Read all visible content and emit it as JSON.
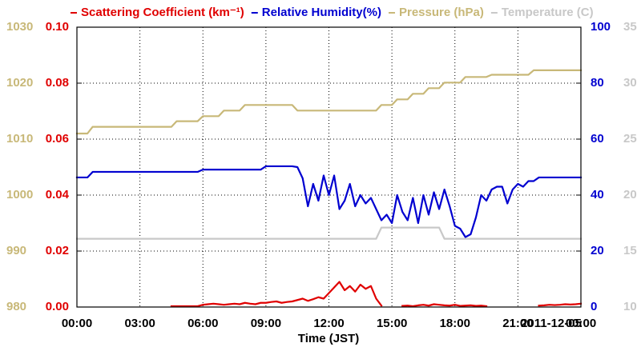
{
  "chart_data": {
    "type": "line",
    "xlabel": "Time (JST)",
    "annotation": "2011-12-05",
    "grid": true,
    "x": [
      0,
      0.25,
      0.5,
      0.75,
      1,
      1.25,
      1.5,
      1.75,
      2,
      2.25,
      2.5,
      2.75,
      3,
      3.25,
      3.5,
      3.75,
      4,
      4.25,
      4.5,
      4.75,
      5,
      5.25,
      5.5,
      5.75,
      6,
      6.25,
      6.5,
      6.75,
      7,
      7.25,
      7.5,
      7.75,
      8,
      8.25,
      8.5,
      8.75,
      9,
      9.25,
      9.5,
      9.75,
      10,
      10.25,
      10.5,
      10.75,
      11,
      11.25,
      11.5,
      11.75,
      12,
      12.25,
      12.5,
      12.75,
      13,
      13.25,
      13.5,
      13.75,
      14,
      14.25,
      14.5,
      14.75,
      15,
      15.25,
      15.5,
      15.75,
      16,
      16.25,
      16.5,
      16.75,
      17,
      17.25,
      17.5,
      17.75,
      18,
      18.25,
      18.5,
      18.75,
      19,
      19.25,
      19.5,
      19.75,
      20,
      20.25,
      20.5,
      20.75,
      21,
      21.25,
      21.5,
      21.75,
      22,
      22.25,
      22.5,
      22.75,
      23,
      23.25,
      23.5,
      23.75,
      24
    ],
    "xlim": [
      0,
      24
    ],
    "xticks": [
      {
        "value": 0,
        "label": "00:00"
      },
      {
        "value": 3,
        "label": "03:00"
      },
      {
        "value": 6,
        "label": "06:00"
      },
      {
        "value": 9,
        "label": "09:00"
      },
      {
        "value": 12,
        "label": "12:00"
      },
      {
        "value": 15,
        "label": "15:00"
      },
      {
        "value": 18,
        "label": "18:00"
      },
      {
        "value": 21,
        "label": "21:00"
      },
      {
        "value": 24,
        "label": "00:00"
      }
    ],
    "ylim": [
      0,
      0.1
    ],
    "yticks": [
      {
        "value": 0,
        "label": "0.00"
      },
      {
        "value": 0.02,
        "label": "0.02"
      },
      {
        "value": 0.04,
        "label": "0.04"
      },
      {
        "value": 0.06,
        "label": "0.06"
      },
      {
        "value": 0.08,
        "label": "0.08"
      },
      {
        "value": 0.1,
        "label": "0.10"
      }
    ],
    "y2lim": [
      0,
      100
    ],
    "y2ticks": [
      0,
      20,
      40,
      60,
      80,
      100
    ],
    "y3lim": [
      980,
      1030
    ],
    "y3ticks": [
      980,
      990,
      1000,
      1010,
      1020,
      1030
    ],
    "y4lim": [
      10,
      35
    ],
    "y4ticks": [
      10,
      15,
      20,
      25,
      30,
      35
    ],
    "series": [
      {
        "name": "Scattering Coefficient (km⁻¹)",
        "color": "#e00000",
        "axis": "y",
        "values": [
          null,
          null,
          null,
          null,
          null,
          null,
          null,
          null,
          null,
          null,
          null,
          null,
          null,
          null,
          null,
          null,
          null,
          null,
          0.0003,
          0.0003,
          0.0003,
          0.0003,
          0.0003,
          0.0003,
          0.0008,
          0.001,
          0.0012,
          0.001,
          0.0008,
          0.001,
          0.0012,
          0.001,
          0.0015,
          0.0012,
          0.001,
          0.0015,
          0.0015,
          0.0018,
          0.002,
          0.0015,
          0.0018,
          0.002,
          0.0025,
          0.003,
          0.0022,
          0.0028,
          0.0035,
          0.003,
          0.005,
          0.007,
          0.009,
          0.006,
          0.0075,
          0.0055,
          0.008,
          0.0065,
          0.0075,
          0.003,
          0.0005,
          null,
          0.0003,
          null,
          0.0004,
          0.0005,
          0.0003,
          0.0006,
          0.0008,
          0.0005,
          0.001,
          0.0008,
          0.0006,
          0.0005,
          0.0008,
          0.0004,
          0.0005,
          0.0006,
          0.0004,
          0.0005,
          0.0003,
          null,
          null,
          null,
          0.0003,
          null,
          null,
          0.0004,
          null,
          null,
          0.0005,
          0.0006,
          0.0008,
          0.0007,
          0.0008,
          0.001,
          0.0009,
          0.001,
          0.0012
        ]
      },
      {
        "name": "Relative Humidity(%)",
        "color": "#0000d0",
        "axis": "y2",
        "values": [
          46.3,
          46.3,
          46.3,
          48.3,
          48.3,
          48.3,
          48.3,
          48.3,
          48.3,
          48.3,
          48.3,
          48.3,
          48.3,
          48.3,
          48.3,
          48.3,
          48.3,
          48.3,
          48.3,
          48.3,
          48.3,
          48.3,
          48.3,
          48.3,
          49.1,
          49.1,
          49.1,
          49.1,
          49.1,
          49.1,
          49.1,
          49.1,
          49.1,
          49.1,
          49.1,
          49.1,
          50.3,
          50.3,
          50.3,
          50.3,
          50.3,
          50.3,
          50,
          46,
          36,
          44,
          38,
          47,
          40,
          47,
          35,
          38,
          44,
          36,
          40,
          37,
          39,
          35,
          31,
          33,
          30,
          40,
          34,
          31,
          39,
          30,
          40,
          33,
          41,
          35,
          42,
          36,
          29,
          28,
          25,
          26,
          32,
          40,
          38,
          42,
          43,
          43,
          37,
          42,
          44,
          43,
          45,
          45,
          46.3,
          46.3,
          46.3,
          46.3,
          46.3,
          46.3,
          46.3,
          46.3,
          46.3
        ]
      },
      {
        "name": "Pressure (hPa)",
        "color": "#c8b878",
        "axis": "y3",
        "values": [
          1011,
          1011,
          1011,
          1012.2,
          1012.2,
          1012.2,
          1012.2,
          1012.2,
          1012.2,
          1012.2,
          1012.2,
          1012.2,
          1012.2,
          1012.2,
          1012.2,
          1012.2,
          1012.2,
          1012.2,
          1012.2,
          1013.2,
          1013.2,
          1013.2,
          1013.2,
          1013.2,
          1014.1,
          1014.1,
          1014.1,
          1014.1,
          1015.1,
          1015.1,
          1015.1,
          1015.1,
          1016.1,
          1016.1,
          1016.1,
          1016.1,
          1016.1,
          1016.1,
          1016.1,
          1016.1,
          1016.1,
          1016.1,
          1015.1,
          1015.1,
          1015.1,
          1015.1,
          1015.1,
          1015.1,
          1015.1,
          1015.1,
          1015.1,
          1015.1,
          1015.1,
          1015.1,
          1015.1,
          1015.1,
          1015.1,
          1015.1,
          1016.1,
          1016.1,
          1016.1,
          1017.1,
          1017.1,
          1017.1,
          1018.1,
          1018.1,
          1018.1,
          1019.1,
          1019.1,
          1019.1,
          1020.1,
          1020.1,
          1020.1,
          1020.1,
          1021.1,
          1021.1,
          1021.1,
          1021.1,
          1021.1,
          1021.5,
          1021.5,
          1021.5,
          1021.5,
          1021.5,
          1021.5,
          1021.5,
          1021.5,
          1022.3,
          1022.3,
          1022.3,
          1022.3,
          1022.3,
          1022.3,
          1022.3,
          1022.3,
          1022.3,
          1022.3
        ]
      },
      {
        "name": "Temperature (C)",
        "color": "#c8c8c8",
        "axis": "y4",
        "values": [
          16.1,
          16.1,
          16.1,
          16.1,
          16.1,
          16.1,
          16.1,
          16.1,
          16.1,
          16.1,
          16.1,
          16.1,
          16.1,
          16.1,
          16.1,
          16.1,
          16.1,
          16.1,
          16.1,
          16.1,
          16.1,
          16.1,
          16.1,
          16.1,
          16.1,
          16.1,
          16.1,
          16.1,
          16.1,
          16.1,
          16.1,
          16.1,
          16.1,
          16.1,
          16.1,
          16.1,
          16.1,
          16.1,
          16.1,
          16.1,
          16.1,
          16.1,
          16.1,
          16.1,
          16.1,
          16.1,
          16.1,
          16.1,
          16.1,
          16.1,
          16.1,
          16.1,
          16.1,
          16.1,
          16.1,
          16.1,
          16.1,
          16.1,
          17.1,
          17.1,
          17.1,
          17.1,
          17.1,
          17.1,
          17.1,
          17.1,
          17.1,
          17.1,
          17.1,
          17.1,
          16.1,
          16.1,
          16.1,
          16.1,
          16.1,
          16.1,
          16.1,
          16.1,
          16.1,
          16.1,
          16.1,
          16.1,
          16.1,
          16.1,
          16.1,
          16.1,
          16.1,
          16.1,
          16.1,
          16.1,
          16.1,
          16.1,
          16.1,
          16.1,
          16.1,
          16.1,
          16.1
        ]
      }
    ]
  }
}
